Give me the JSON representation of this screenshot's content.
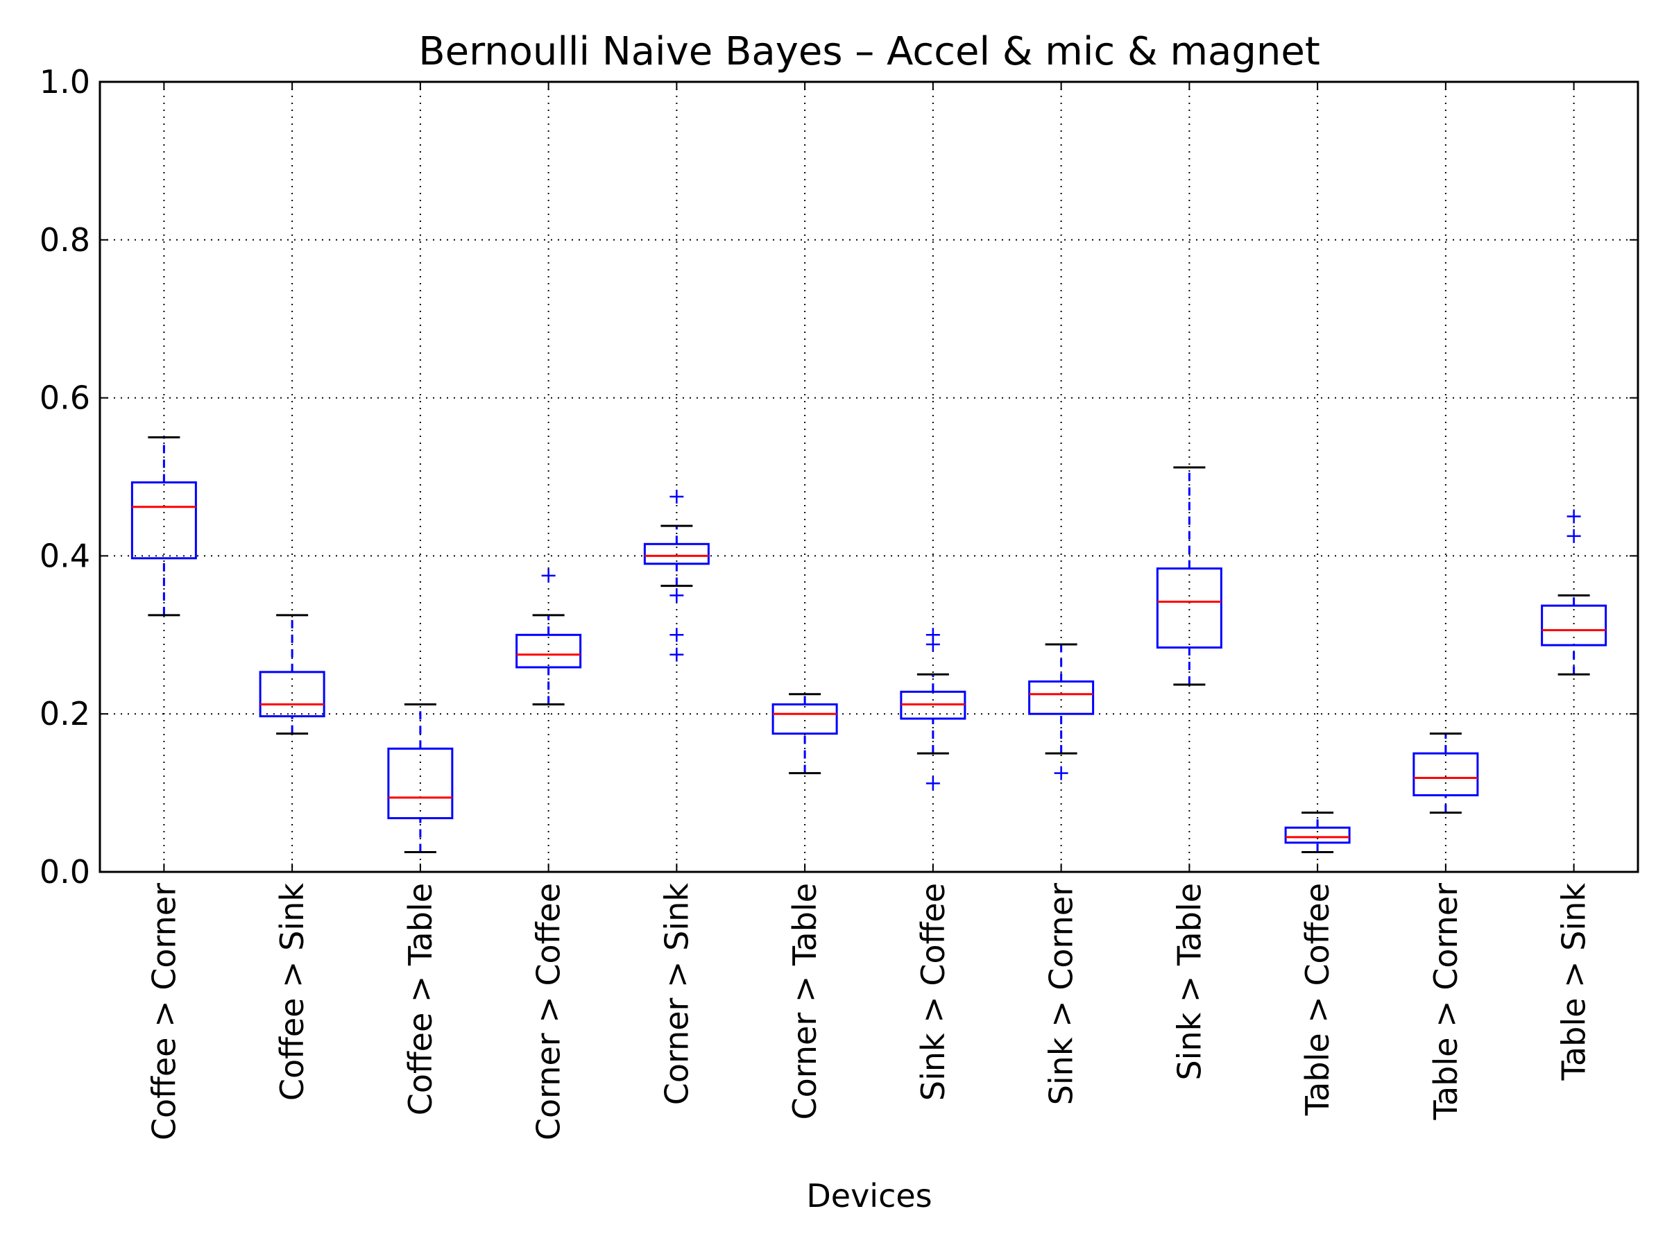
{
  "chart_data": {
    "type": "box",
    "title": "Bernoulli Naive Bayes – Accel & mic & magnet",
    "xlabel": "Devices",
    "ylabel": "",
    "ylim": [
      0.0,
      1.0
    ],
    "yticks": [
      "0.0",
      "0.2",
      "0.4",
      "0.6",
      "0.8",
      "1.0"
    ],
    "grid": true,
    "categories": [
      "Coffee > Corner",
      "Coffee > Sink",
      "Coffee > Table",
      "Corner > Coffee",
      "Corner > Sink",
      "Corner > Table",
      "Sink > Coffee",
      "Sink > Corner",
      "Sink > Table",
      "Table > Coffee",
      "Table > Corner",
      "Table > Sink"
    ],
    "boxes": [
      {
        "whisker_low": 0.325,
        "q1": 0.397,
        "median": 0.462,
        "q3": 0.493,
        "whisker_high": 0.55,
        "outliers": []
      },
      {
        "whisker_low": 0.175,
        "q1": 0.197,
        "median": 0.212,
        "q3": 0.253,
        "whisker_high": 0.325,
        "outliers": []
      },
      {
        "whisker_low": 0.025,
        "q1": 0.068,
        "median": 0.094,
        "q3": 0.156,
        "whisker_high": 0.212,
        "outliers": []
      },
      {
        "whisker_low": 0.212,
        "q1": 0.259,
        "median": 0.275,
        "q3": 0.3,
        "whisker_high": 0.325,
        "outliers": [
          0.375
        ]
      },
      {
        "whisker_low": 0.362,
        "q1": 0.39,
        "median": 0.4,
        "q3": 0.415,
        "whisker_high": 0.438,
        "outliers": [
          0.475,
          0.35,
          0.3,
          0.275
        ]
      },
      {
        "whisker_low": 0.125,
        "q1": 0.175,
        "median": 0.2,
        "q3": 0.212,
        "whisker_high": 0.225,
        "outliers": []
      },
      {
        "whisker_low": 0.15,
        "q1": 0.194,
        "median": 0.212,
        "q3": 0.228,
        "whisker_high": 0.25,
        "outliers": [
          0.3,
          0.288,
          0.112
        ]
      },
      {
        "whisker_low": 0.15,
        "q1": 0.2,
        "median": 0.225,
        "q3": 0.241,
        "whisker_high": 0.288,
        "outliers": [
          0.125
        ]
      },
      {
        "whisker_low": 0.237,
        "q1": 0.284,
        "median": 0.342,
        "q3": 0.384,
        "whisker_high": 0.512,
        "outliers": []
      },
      {
        "whisker_low": 0.025,
        "q1": 0.037,
        "median": 0.044,
        "q3": 0.056,
        "whisker_high": 0.075,
        "outliers": []
      },
      {
        "whisker_low": 0.075,
        "q1": 0.097,
        "median": 0.119,
        "q3": 0.15,
        "whisker_high": 0.175,
        "outliers": []
      },
      {
        "whisker_low": 0.25,
        "q1": 0.287,
        "median": 0.306,
        "q3": 0.337,
        "whisker_high": 0.35,
        "outliers": [
          0.45,
          0.425
        ]
      }
    ],
    "colors": {
      "box": "#0000ff",
      "median": "#ff0000",
      "cap": "#000000",
      "grid": "#000000"
    }
  }
}
